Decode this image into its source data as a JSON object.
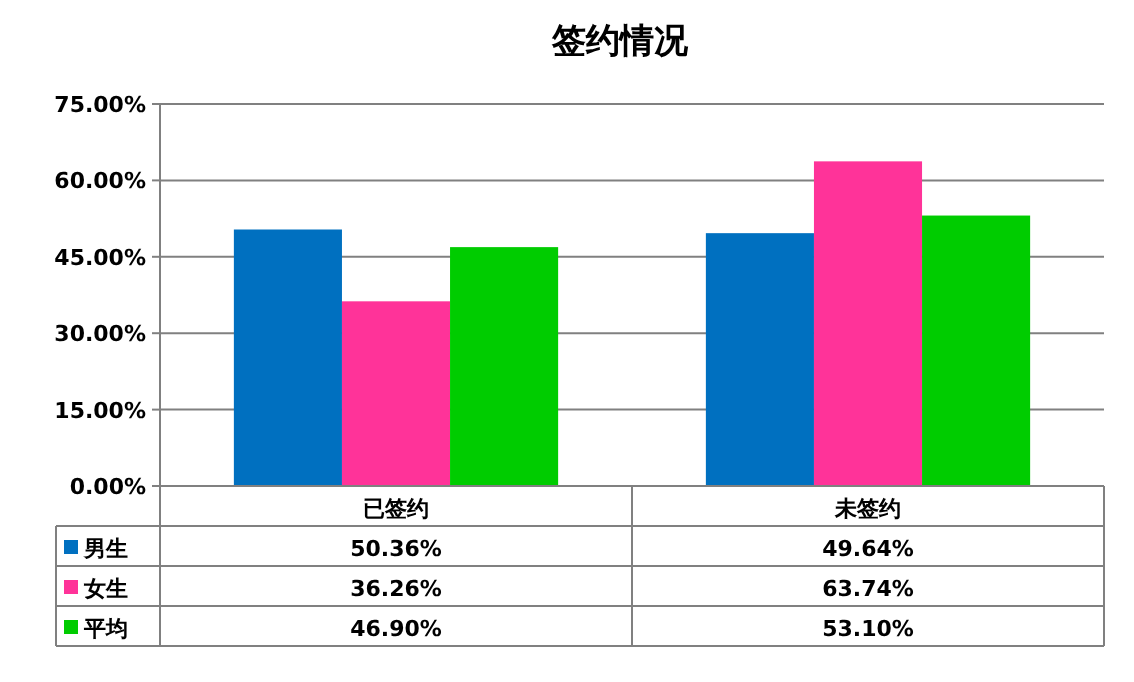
{
  "chart_data": {
    "type": "bar",
    "title": "签约情况",
    "categories": [
      "已签约",
      "未签约"
    ],
    "series": [
      {
        "name": "男生",
        "color": "#0070c0",
        "values": [
          50.36,
          49.64
        ],
        "value_labels": [
          "50.36%",
          "49.64%"
        ]
      },
      {
        "name": "女生",
        "color": "#ff3399",
        "values": [
          36.26,
          63.74
        ],
        "value_labels": [
          "36.26%",
          "63.74%"
        ]
      },
      {
        "name": "平均",
        "color": "#00cc00",
        "values": [
          46.9,
          53.1
        ],
        "value_labels": [
          "46.90%",
          "53.10%"
        ]
      }
    ],
    "ylim": [
      0,
      75
    ],
    "yticks": [
      {
        "value": 0,
        "label": "0.00%"
      },
      {
        "value": 15,
        "label": "15.00%"
      },
      {
        "value": 30,
        "label": "30.00%"
      },
      {
        "value": 45,
        "label": "45.00%"
      },
      {
        "value": 60,
        "label": "60.00%"
      },
      {
        "value": 75,
        "label": "75.00%"
      }
    ],
    "grid": "y",
    "legend": "bottom"
  }
}
